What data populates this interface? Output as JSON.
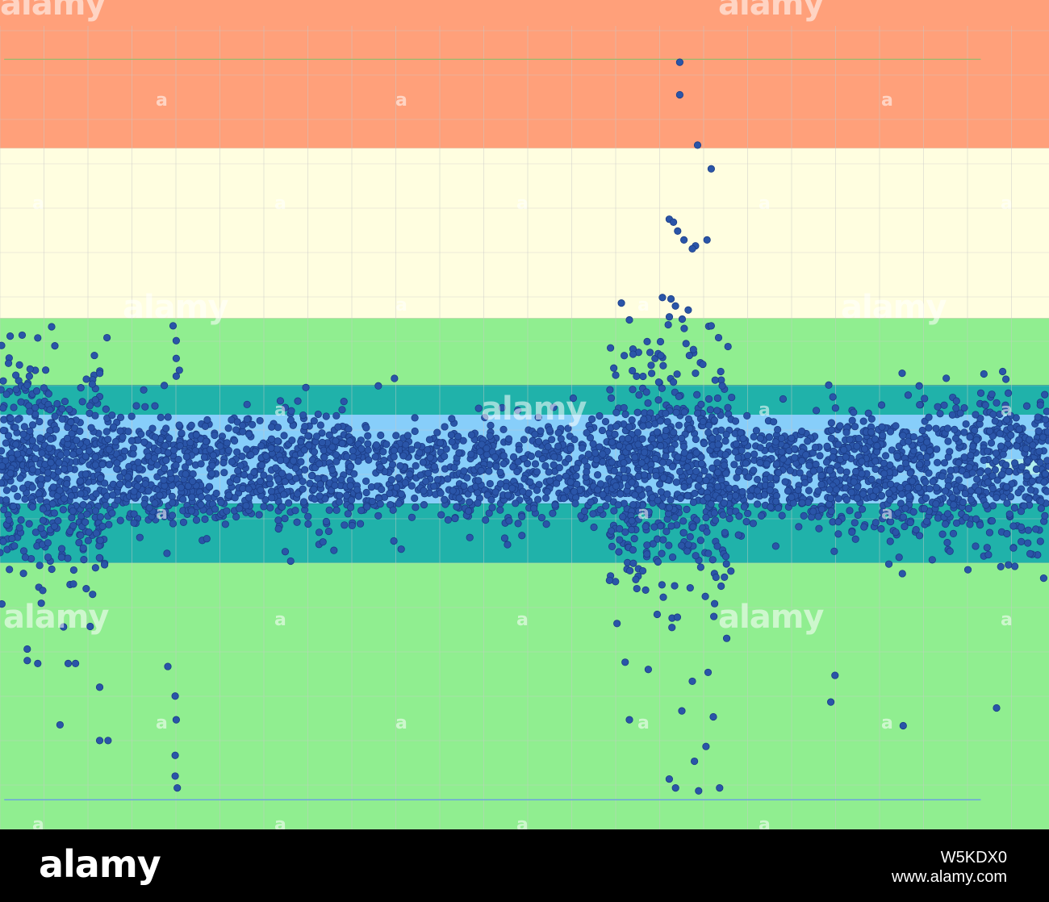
{
  "chart_data": {
    "type": "scatter",
    "title": "",
    "xlabel": "",
    "ylabel": "",
    "xlim": [
      0,
      100
    ],
    "ylim": [
      -12,
      16
    ],
    "grid": true,
    "legend": "none",
    "point_color": "#2a55a8",
    "point_edge": "#1b3c85",
    "bands": [
      {
        "name": "top",
        "from": 11,
        "to": 16,
        "color": "#ffa07a"
      },
      {
        "name": "pale",
        "from": 5.25,
        "to": 11,
        "color": "#fffee0"
      },
      {
        "name": "green-upper",
        "from": 3,
        "to": 5.25,
        "color": "#90ee90"
      },
      {
        "name": "teal-upper",
        "from": 2,
        "to": 3,
        "color": "#20b2aa"
      },
      {
        "name": "sky",
        "from": -1,
        "to": 2,
        "color": "#87cefa"
      },
      {
        "name": "teal-lower",
        "from": -3,
        "to": -1,
        "color": "#20b2aa"
      },
      {
        "name": "green-lower",
        "from": -12,
        "to": -3,
        "color": "#90ee90"
      }
    ],
    "inner_band": {
      "from": 0,
      "to": 0.5,
      "x_from": 94,
      "x_to": 100,
      "color": "#afeeee"
    },
    "reference_lines": [
      {
        "y": 14,
        "color": "#8fbc6a"
      },
      {
        "y": -11,
        "color": "#6495ed"
      }
    ],
    "clusters": [
      {
        "x": [
          0,
          10
        ],
        "sd": 2.2,
        "n": 520
      },
      {
        "x": [
          10,
          33
        ],
        "sd": 1.1,
        "n": 700
      },
      {
        "x": [
          33,
          58
        ],
        "sd": 0.9,
        "n": 620
      },
      {
        "x": [
          58,
          70
        ],
        "sd": 2.4,
        "n": 620
      },
      {
        "x": [
          70,
          79
        ],
        "sd": 1.0,
        "n": 260
      },
      {
        "x": [
          79,
          90
        ],
        "sd": 1.2,
        "n": 380
      },
      {
        "x": [
          90,
          100
        ],
        "sd": 1.5,
        "n": 360
      }
    ],
    "points": [
      [
        64.8,
        13.9
      ],
      [
        64.8,
        12.8
      ],
      [
        66.5,
        11.1
      ],
      [
        67.8,
        10.3
      ],
      [
        63.8,
        8.6
      ],
      [
        64.2,
        8.5
      ],
      [
        64.6,
        8.2
      ],
      [
        65.2,
        7.9
      ],
      [
        66.3,
        7.7
      ],
      [
        67.4,
        7.9
      ],
      [
        66.0,
        7.6
      ],
      [
        60.0,
        5.2
      ],
      [
        67.8,
        5.0
      ],
      [
        68.5,
        4.6
      ],
      [
        69.4,
        4.3
      ],
      [
        63.0,
        4.0
      ],
      [
        65.4,
        4.4
      ],
      [
        66.1,
        4.2
      ],
      [
        67.0,
        3.7
      ],
      [
        66.3,
        3.4
      ],
      [
        62.8,
        3.1
      ],
      [
        64.2,
        3.1
      ],
      [
        10.2,
        4.6
      ],
      [
        9.0,
        4.0
      ],
      [
        16.5,
        5.0
      ],
      [
        16.8,
        4.5
      ],
      [
        16.8,
        3.9
      ],
      [
        17.1,
        3.5
      ],
      [
        16.8,
        3.3
      ],
      [
        2.8,
        3.3
      ],
      [
        2.6,
        3.0
      ],
      [
        3.5,
        2.8
      ],
      [
        9.1,
        2.5
      ],
      [
        13.0,
        2.3
      ],
      [
        79.0,
        3.0
      ],
      [
        79.4,
        2.6
      ],
      [
        86.0,
        3.4
      ],
      [
        95.0,
        2.4
      ],
      [
        81.5,
        1.6
      ],
      [
        74.5,
        1.2
      ],
      [
        86.6,
        1.1
      ],
      [
        93.0,
        2.0
      ],
      [
        9.5,
        -9.0
      ],
      [
        10.3,
        -9.0
      ],
      [
        9.5,
        -7.2
      ],
      [
        16.7,
        -10.2
      ],
      [
        16.9,
        -10.6
      ],
      [
        16.7,
        -9.5
      ],
      [
        16.8,
        -8.3
      ],
      [
        16.7,
        -7.5
      ],
      [
        60.0,
        -8.3
      ],
      [
        63.8,
        -10.3
      ],
      [
        64.4,
        -10.6
      ],
      [
        66.6,
        -10.7
      ],
      [
        68.6,
        -10.6
      ],
      [
        66.2,
        -9.7
      ],
      [
        67.3,
        -9.2
      ],
      [
        68.0,
        -8.2
      ],
      [
        65.0,
        -8.0
      ],
      [
        79.2,
        -7.7
      ],
      [
        79.6,
        -6.8
      ],
      [
        86.1,
        -8.5
      ],
      [
        95.0,
        -7.9
      ],
      [
        16.0,
        -6.5
      ],
      [
        3.6,
        -6.4
      ],
      [
        2.6,
        -6.3
      ],
      [
        6.5,
        -6.4
      ],
      [
        7.2,
        -6.4
      ],
      [
        61.8,
        -6.6
      ],
      [
        66.0,
        -7.0
      ],
      [
        67.5,
        -6.7
      ]
    ],
    "seed": 1337
  },
  "watermark": {
    "large": "alamy",
    "small": "a"
  },
  "footer": {
    "logo": "alamy",
    "image_id": "W5KDX0",
    "url": "www.alamy.com"
  }
}
